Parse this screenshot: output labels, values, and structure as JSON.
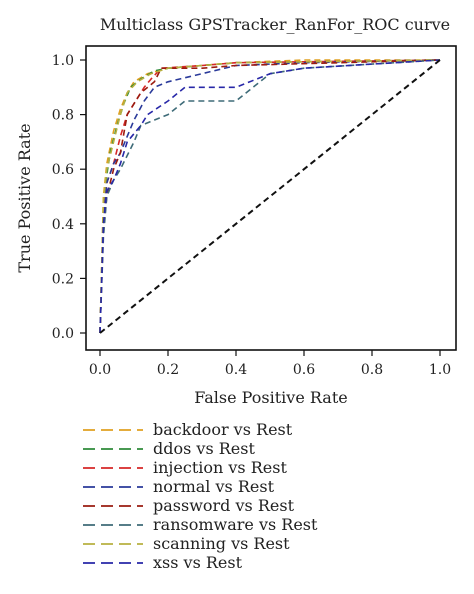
{
  "chart_data": {
    "type": "line",
    "title": "Multiclass GPSTracker_RanFor_ROC curve",
    "xlabel": "False Positive Rate",
    "ylabel": "True Positive Rate",
    "xlim": [
      0.0,
      1.0
    ],
    "ylim": [
      0.0,
      1.0
    ],
    "xticks": [
      "0.0",
      "0.2",
      "0.4",
      "0.6",
      "0.8",
      "1.0"
    ],
    "yticks": [
      "0.0",
      "0.2",
      "0.4",
      "0.6",
      "0.8",
      "1.0"
    ],
    "grid": false,
    "legend_position": "below",
    "line_style": "dashed",
    "diagonal": {
      "x": [
        0,
        1
      ],
      "y": [
        0,
        1
      ],
      "color": "#111111"
    },
    "series": [
      {
        "name": "backdoor vs Rest",
        "color": "#E0A020",
        "x": [
          0,
          0.01,
          0.02,
          0.04,
          0.06,
          0.08,
          0.1,
          0.14,
          0.2,
          0.3,
          0.4,
          0.6,
          1.0
        ],
        "y": [
          0,
          0.5,
          0.62,
          0.74,
          0.82,
          0.88,
          0.92,
          0.95,
          0.97,
          0.98,
          0.99,
          1.0,
          1.0
        ]
      },
      {
        "name": "ddos vs Rest",
        "color": "#2E8B3A",
        "x": [
          0,
          0.01,
          0.02,
          0.03,
          0.05,
          0.07,
          0.09,
          0.12,
          0.16,
          0.2,
          0.3,
          0.4,
          1.0
        ],
        "y": [
          0,
          0.45,
          0.58,
          0.66,
          0.76,
          0.84,
          0.9,
          0.93,
          0.96,
          0.97,
          0.98,
          0.99,
          1.0
        ]
      },
      {
        "name": "injection vs Rest",
        "color": "#D62828",
        "x": [
          0,
          0.01,
          0.02,
          0.04,
          0.06,
          0.08,
          0.1,
          0.13,
          0.15,
          0.18,
          0.3,
          0.4,
          1.0
        ],
        "y": [
          0,
          0.42,
          0.55,
          0.62,
          0.72,
          0.8,
          0.84,
          0.9,
          0.93,
          0.97,
          0.98,
          0.99,
          1.0
        ]
      },
      {
        "name": "normal vs Rest",
        "color": "#2A3A9A",
        "x": [
          0,
          0.01,
          0.02,
          0.04,
          0.06,
          0.08,
          0.1,
          0.13,
          0.16,
          0.2,
          0.3,
          0.4,
          0.6,
          1.0
        ],
        "y": [
          0,
          0.4,
          0.55,
          0.62,
          0.66,
          0.72,
          0.78,
          0.85,
          0.9,
          0.92,
          0.95,
          0.98,
          0.99,
          1.0
        ]
      },
      {
        "name": "password vs Rest",
        "color": "#9A1C10",
        "x": [
          0,
          0.01,
          0.02,
          0.04,
          0.06,
          0.08,
          0.12,
          0.16,
          0.18,
          0.3,
          0.4,
          1.0
        ],
        "y": [
          0,
          0.38,
          0.5,
          0.6,
          0.66,
          0.8,
          0.88,
          0.92,
          0.97,
          0.97,
          0.98,
          1.0
        ]
      },
      {
        "name": "ransomware vs Rest",
        "color": "#3E6B78",
        "x": [
          0,
          0.01,
          0.02,
          0.04,
          0.06,
          0.1,
          0.12,
          0.2,
          0.25,
          0.4,
          0.45,
          0.5,
          0.6,
          1.0
        ],
        "y": [
          0,
          0.35,
          0.5,
          0.56,
          0.6,
          0.7,
          0.76,
          0.8,
          0.85,
          0.85,
          0.9,
          0.95,
          0.97,
          1.0
        ]
      },
      {
        "name": "scanning vs Rest",
        "color": "#B8B040",
        "x": [
          0,
          0.01,
          0.02,
          0.04,
          0.06,
          0.08,
          0.11,
          0.15,
          0.2,
          0.3,
          0.4,
          1.0
        ],
        "y": [
          0,
          0.48,
          0.6,
          0.7,
          0.8,
          0.88,
          0.92,
          0.95,
          0.97,
          0.98,
          0.99,
          1.0
        ]
      },
      {
        "name": "xss vs Rest",
        "color": "#2828A8",
        "x": [
          0,
          0.01,
          0.02,
          0.04,
          0.06,
          0.08,
          0.12,
          0.14,
          0.2,
          0.25,
          0.4,
          0.5,
          0.6,
          1.0
        ],
        "y": [
          0,
          0.4,
          0.52,
          0.56,
          0.62,
          0.7,
          0.76,
          0.8,
          0.85,
          0.9,
          0.9,
          0.95,
          0.97,
          1.0
        ]
      }
    ]
  }
}
